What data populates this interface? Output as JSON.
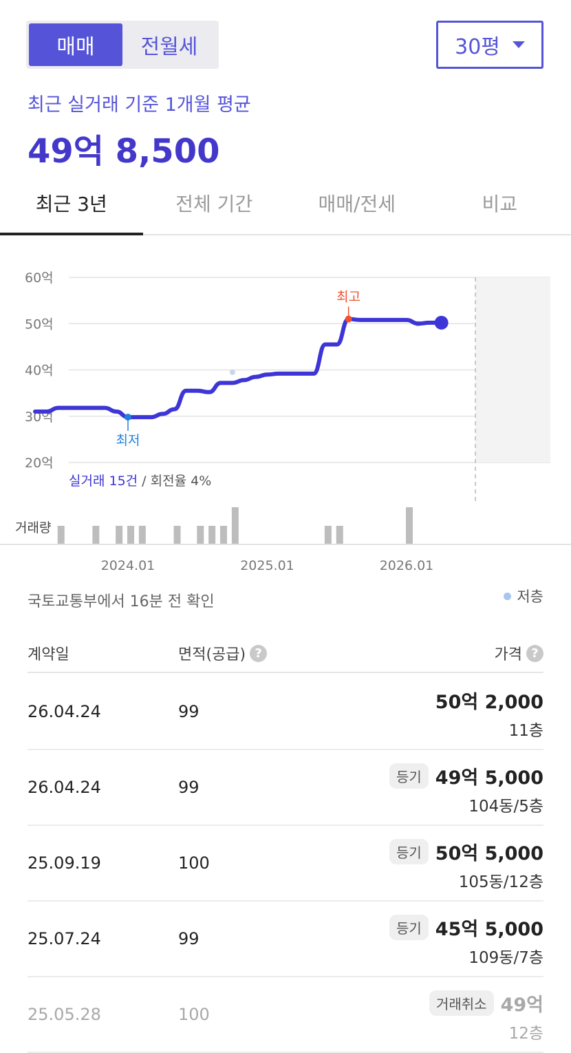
{
  "segment": {
    "buy": "매매",
    "rent": "전월세"
  },
  "area_select": {
    "value": "30평"
  },
  "summary": {
    "label": "최근 실거래 기준 1개월 평균",
    "price": "49억 8,500"
  },
  "tabs": [
    {
      "label": "최근 3년"
    },
    {
      "label": "전체 기간"
    },
    {
      "label": "매매/전세"
    },
    {
      "label": "비교"
    }
  ],
  "chart_data": {
    "type": "line",
    "y_ticks": [
      "60억",
      "50억",
      "40억",
      "30억",
      "20억"
    ],
    "ylim": [
      20,
      60
    ],
    "x_ticks": [
      "2024.01",
      "2025.01",
      "2026.01"
    ],
    "series": [
      {
        "x": [
          "2023-05",
          "2023-06",
          "2023-07",
          "2023-08",
          "2023-09",
          "2023-10",
          "2023-11",
          "2023-12",
          "2024-01",
          "2024-02",
          "2024-03",
          "2024-04",
          "2024-05",
          "2024-06",
          "2024-07",
          "2024-08",
          "2024-09",
          "2024-10",
          "2024-11",
          "2024-12",
          "2025-01",
          "2025-02",
          "2025-03",
          "2025-04",
          "2025-05",
          "2025-06",
          "2025-07",
          "2025-08",
          "2025-09",
          "2025-10",
          "2025-11",
          "2025-12",
          "2026-01",
          "2026-02",
          "2026-03",
          "2026-04"
        ],
        "y": [
          31.0,
          31.0,
          31.8,
          31.8,
          31.8,
          31.8,
          31.8,
          31.0,
          29.8,
          29.8,
          29.8,
          30.5,
          31.5,
          35.5,
          35.5,
          35.2,
          37.2,
          37.2,
          37.8,
          38.5,
          39.0,
          39.2,
          39.2,
          39.2,
          39.2,
          45.5,
          45.5,
          51.0,
          50.8,
          50.8,
          50.8,
          50.8,
          50.8,
          50.0,
          50.2,
          50.2
        ]
      }
    ],
    "low_points": [
      {
        "x": "2024-10",
        "y": 39.5
      },
      {
        "x": "2026-02",
        "y": 50.0
      }
    ],
    "max_label": "최고",
    "min_label": "최저",
    "stats_count": "실거래 15건",
    "stats_rate": " / 회전율 4%",
    "volume_label": "거래량",
    "volume": [
      {
        "x": "2023-07",
        "v": 1
      },
      {
        "x": "2023-10",
        "v": 1
      },
      {
        "x": "2023-12",
        "v": 1
      },
      {
        "x": "2024-01",
        "v": 1
      },
      {
        "x": "2024-02",
        "v": 1
      },
      {
        "x": "2024-05",
        "v": 1
      },
      {
        "x": "2024-07",
        "v": 1
      },
      {
        "x": "2024-08",
        "v": 1
      },
      {
        "x": "2024-09",
        "v": 1
      },
      {
        "x": "2024-10",
        "v": 2
      },
      {
        "x": "2025-06",
        "v": 1
      },
      {
        "x": "2025-07",
        "v": 1
      },
      {
        "x": "2026-01",
        "v": 2
      }
    ]
  },
  "info_text": "국토교통부에서 16분 전 확인",
  "legend_label": "저층",
  "table": {
    "headers": {
      "date": "계약일",
      "area": "면적(공급)",
      "price": "가격"
    },
    "rows": [
      {
        "date": "26.04.24",
        "area": "99",
        "badge": "",
        "price": "50억 2,000",
        "floor": "11층"
      },
      {
        "date": "26.04.24",
        "area": "99",
        "badge": "등기",
        "price": "49억 5,000",
        "floor": "104동/5층"
      },
      {
        "date": "25.09.19",
        "area": "100",
        "badge": "등기",
        "price": "50억 5,000",
        "floor": "105동/12층"
      },
      {
        "date": "25.07.24",
        "area": "99",
        "badge": "등기",
        "price": "45억 5,000",
        "floor": "109동/7층"
      },
      {
        "date": "25.05.28",
        "area": "100",
        "badge": "거래취소",
        "price": "49억",
        "floor": "12층",
        "cancelled": true
      }
    ]
  },
  "colors": {
    "accent": "#5554d9",
    "line": "#3d35d6",
    "max": "#f0502c",
    "min": "#1f7fe0"
  }
}
